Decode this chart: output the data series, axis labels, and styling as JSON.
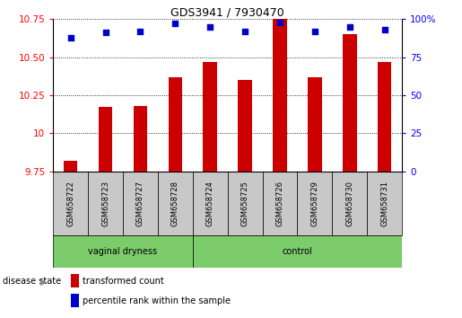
{
  "title": "GDS3941 / 7930470",
  "samples": [
    "GSM658722",
    "GSM658723",
    "GSM658727",
    "GSM658728",
    "GSM658724",
    "GSM658725",
    "GSM658726",
    "GSM658729",
    "GSM658730",
    "GSM658731"
  ],
  "transformed_count": [
    9.82,
    10.17,
    10.18,
    10.37,
    10.47,
    10.35,
    10.75,
    10.37,
    10.65,
    10.47
  ],
  "percentile_rank": [
    88,
    91,
    92,
    97,
    95,
    92,
    98,
    92,
    95,
    93
  ],
  "groups": [
    "vaginal dryness",
    "vaginal dryness",
    "vaginal dryness",
    "vaginal dryness",
    "control",
    "control",
    "control",
    "control",
    "control",
    "control"
  ],
  "bar_color": "#CC0000",
  "dot_color": "#0000CC",
  "ylim_left": [
    9.75,
    10.75
  ],
  "ylim_right": [
    0,
    100
  ],
  "yticks_left": [
    9.75,
    10.0,
    10.25,
    10.5,
    10.75
  ],
  "yticks_right": [
    0,
    25,
    50,
    75,
    100
  ],
  "label_transformed": "transformed count",
  "label_percentile": "percentile rank within the sample",
  "disease_state_label": "disease state",
  "group_boundary": 4,
  "green_color": "#7CCC6C",
  "gray_color": "#C8C8C8",
  "bar_width": 0.4
}
